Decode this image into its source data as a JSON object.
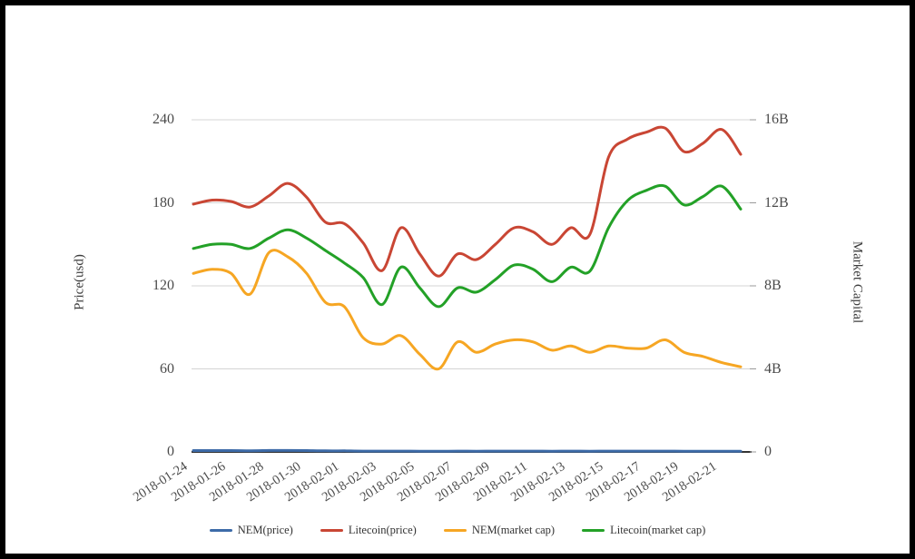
{
  "chart_data": {
    "type": "line",
    "smooth": true,
    "grid": true,
    "legend_position": "bottom",
    "x": [
      "2018-01-24",
      "2018-01-25",
      "2018-01-26",
      "2018-01-27",
      "2018-01-28",
      "2018-01-29",
      "2018-01-30",
      "2018-01-31",
      "2018-02-01",
      "2018-02-02",
      "2018-02-03",
      "2018-02-04",
      "2018-02-05",
      "2018-02-06",
      "2018-02-07",
      "2018-02-08",
      "2018-02-09",
      "2018-02-10",
      "2018-02-11",
      "2018-02-12",
      "2018-02-13",
      "2018-02-14",
      "2018-02-15",
      "2018-02-16",
      "2018-02-17",
      "2018-02-18",
      "2018-02-19",
      "2018-02-20",
      "2018-02-21",
      "2018-02-22"
    ],
    "x_tick_labels": [
      "2018-01-24",
      "2018-01-26",
      "2018-01-28",
      "2018-01-30",
      "2018-02-01",
      "2018-02-03",
      "2018-02-05",
      "2018-02-07",
      "2018-02-09",
      "2018-02-11",
      "2018-02-13",
      "2018-02-15",
      "2018-02-17",
      "2018-02-19",
      "2018-02-21"
    ],
    "left_axis": {
      "name": "Price(usd)",
      "min": 0,
      "max": 240,
      "ticks": [
        "0",
        "60",
        "120",
        "180",
        "240"
      ],
      "tick_values": [
        0,
        60,
        120,
        180,
        240
      ]
    },
    "right_axis": {
      "name": "Market Capital",
      "min": 0,
      "max": 16,
      "unit": "B",
      "ticks": [
        "0",
        "4B",
        "8B",
        "12B",
        "16B"
      ],
      "tick_values": [
        0,
        4,
        8,
        12,
        16
      ]
    },
    "series": [
      {
        "name": "NEM(price)",
        "axis": "left",
        "color": "#3d6ba8",
        "values": [
          0.96,
          0.98,
          0.96,
          0.84,
          1.07,
          1.04,
          0.96,
          0.8,
          0.78,
          0.61,
          0.58,
          0.62,
          0.52,
          0.45,
          0.59,
          0.53,
          0.58,
          0.6,
          0.59,
          0.54,
          0.57,
          0.53,
          0.57,
          0.56,
          0.56,
          0.6,
          0.53,
          0.51,
          0.48,
          0.46
        ]
      },
      {
        "name": "Litecoin(price)",
        "axis": "left",
        "color": "#c94634",
        "values": [
          179,
          182,
          181,
          177,
          185,
          194,
          184,
          166,
          165,
          151,
          131,
          162,
          143,
          127,
          143,
          139,
          150,
          162,
          159,
          150,
          162,
          157,
          213,
          226,
          231,
          234,
          217,
          223,
          233,
          215
        ]
      },
      {
        "name": "NEM(market cap)",
        "axis": "right",
        "color": "#f6a623",
        "values": [
          8.6,
          8.8,
          8.6,
          7.6,
          9.6,
          9.4,
          8.6,
          7.2,
          7.0,
          5.5,
          5.2,
          5.6,
          4.7,
          4.0,
          5.3,
          4.8,
          5.2,
          5.4,
          5.3,
          4.9,
          5.1,
          4.8,
          5.1,
          5.0,
          5.0,
          5.4,
          4.8,
          4.6,
          4.3,
          4.1
        ]
      },
      {
        "name": "Litecoin(market cap)",
        "axis": "right",
        "color": "#23a127",
        "values": [
          9.8,
          10.0,
          10.0,
          9.8,
          10.3,
          10.7,
          10.3,
          9.7,
          9.1,
          8.4,
          7.1,
          8.9,
          7.9,
          7.0,
          7.9,
          7.7,
          8.3,
          9.0,
          8.8,
          8.2,
          8.9,
          8.7,
          10.8,
          12.1,
          12.6,
          12.8,
          11.9,
          12.3,
          12.8,
          11.7
        ]
      }
    ],
    "legend": [
      "NEM(price)",
      "Litecoin(price)",
      "NEM(market cap)",
      "Litecoin(market cap)"
    ]
  },
  "style": {
    "gridline_color": "#d4d4d4",
    "axisline_color": "#333333",
    "tick_color": "#999999",
    "background": "#ffffff",
    "frame_border": "#000000"
  }
}
